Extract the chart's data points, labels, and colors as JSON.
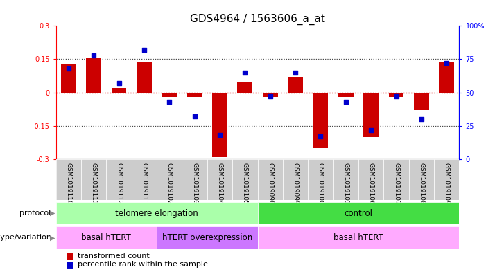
{
  "title": "GDS4964 / 1563606_a_at",
  "samples": [
    "GSM1019110",
    "GSM1019111",
    "GSM1019112",
    "GSM1019113",
    "GSM1019102",
    "GSM1019103",
    "GSM1019104",
    "GSM1019105",
    "GSM1019098",
    "GSM1019099",
    "GSM1019100",
    "GSM1019101",
    "GSM1019106",
    "GSM1019107",
    "GSM1019108",
    "GSM1019109"
  ],
  "transformed_count": [
    0.13,
    0.155,
    0.02,
    0.14,
    -0.02,
    -0.02,
    -0.29,
    0.05,
    -0.02,
    0.07,
    -0.25,
    -0.02,
    -0.2,
    -0.02,
    -0.08,
    0.14
  ],
  "percentile_rank": [
    68,
    78,
    57,
    82,
    43,
    32,
    18,
    65,
    47,
    65,
    17,
    43,
    22,
    47,
    30,
    72
  ],
  "ylim_left": [
    -0.3,
    0.3
  ],
  "ylim_right": [
    0,
    100
  ],
  "yticks_left": [
    -0.3,
    -0.15,
    0.0,
    0.15,
    0.3
  ],
  "yticks_right": [
    0,
    25,
    50,
    75,
    100
  ],
  "protocol_groups": [
    {
      "label": "telomere elongation",
      "start": 0,
      "end": 8,
      "color": "#AAFFAA"
    },
    {
      "label": "control",
      "start": 8,
      "end": 16,
      "color": "#44DD44"
    }
  ],
  "genotype_groups": [
    {
      "label": "basal hTERT",
      "start": 0,
      "end": 4,
      "color": "#FFAAFF"
    },
    {
      "label": "hTERT overexpression",
      "start": 4,
      "end": 8,
      "color": "#CC77FF"
    },
    {
      "label": "basal hTERT",
      "start": 8,
      "end": 16,
      "color": "#FFAAFF"
    }
  ],
  "bar_color": "#CC0000",
  "dot_color": "#0000CC",
  "zero_line_color": "#DD0000",
  "dotted_line_color": "#444444",
  "tick_bg_color": "#CCCCCC",
  "legend_items": [
    {
      "label": "transformed count",
      "color": "#CC0000"
    },
    {
      "label": "percentile rank within the sample",
      "color": "#0000CC"
    }
  ],
  "protocol_label": "protocol",
  "genotype_label": "genotype/variation",
  "title_fontsize": 11,
  "tick_fontsize": 7,
  "annotation_fontsize": 8.5,
  "label_fontsize": 8,
  "sample_fontsize": 6.5
}
